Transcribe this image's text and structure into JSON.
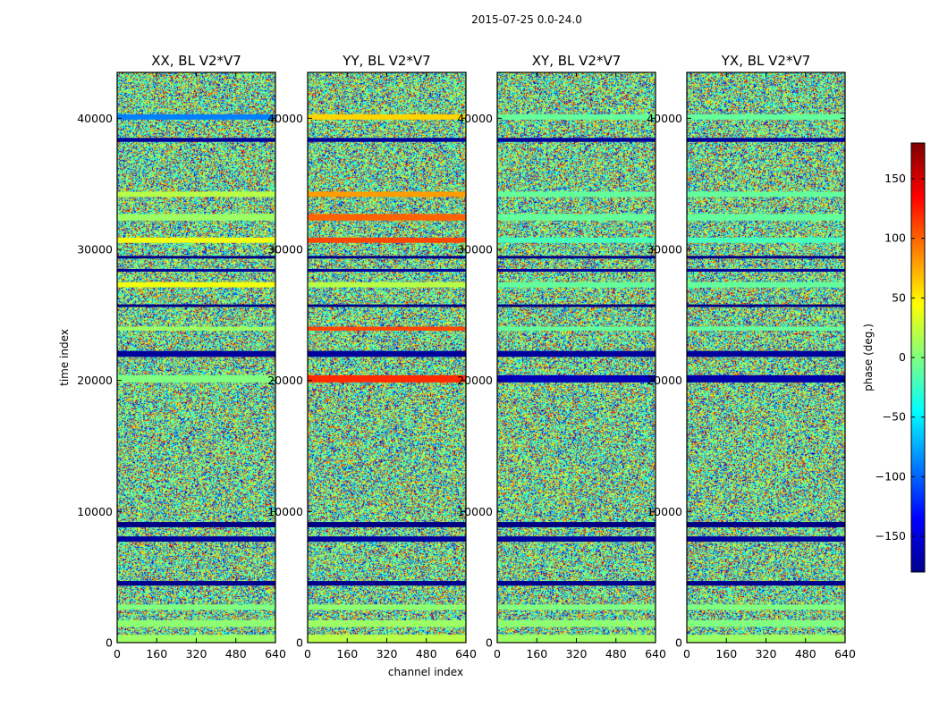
{
  "chart_data": {
    "type": "heatmap",
    "title": "2015-07-25 0.0-24.0",
    "xlabel": "channel index",
    "ylabel": "time index",
    "xlim": [
      0,
      640
    ],
    "ylim": [
      0,
      43500
    ],
    "x_ticks": [
      0,
      160,
      320,
      480,
      640
    ],
    "y_ticks": [
      0,
      10000,
      20000,
      30000,
      40000
    ],
    "panels": [
      {
        "title": "XX, BL V2*V7",
        "polarization": "XX",
        "baseline": "V2*V7"
      },
      {
        "title": "YY, BL V2*V7",
        "polarization": "YY",
        "baseline": "V2*V7"
      },
      {
        "title": "XY, BL V2*V7",
        "polarization": "XY",
        "baseline": "V2*V7"
      },
      {
        "title": "YX, BL V2*V7",
        "polarization": "YX",
        "baseline": "V2*V7"
      }
    ],
    "colorbar": {
      "label": "phase (deg.)",
      "range": [
        -180,
        180
      ],
      "ticks": [
        150,
        100,
        50,
        0,
        -50,
        -100,
        -150
      ],
      "tick_labels": [
        "150",
        "100",
        "50",
        "0",
        "−50",
        "−100",
        "−150"
      ],
      "colormap": "jet"
    },
    "description_of_values": "phase vs channel (x) and time (y); mostly random noise with horizontal coherent bands",
    "bands": [
      {
        "t0": 0,
        "t1": 600,
        "phase": [
          10,
          20,
          10,
          10
        ]
      },
      {
        "t0": 1200,
        "t1": 1700,
        "phase": [
          5,
          10,
          5,
          0
        ]
      },
      {
        "t0": 2500,
        "t1": 2900,
        "phase": [
          0,
          5,
          0,
          0
        ]
      },
      {
        "t0": 4350,
        "t1": 4700,
        "phase": [
          -175,
          -175,
          -175,
          -175
        ]
      },
      {
        "t0": 7700,
        "t1": 8100,
        "phase": [
          -170,
          -170,
          -170,
          -170
        ]
      },
      {
        "t0": 8800,
        "t1": 9200,
        "phase": [
          -178,
          -178,
          -178,
          -178
        ]
      },
      {
        "t0": 19850,
        "t1": 20400,
        "phase": [
          0,
          120,
          -160,
          -165
        ]
      },
      {
        "t0": 21800,
        "t1": 22250,
        "phase": [
          -170,
          -170,
          -170,
          -170
        ]
      },
      {
        "t0": 23800,
        "t1": 24100,
        "phase": [
          10,
          110,
          -10,
          -10
        ]
      },
      {
        "t0": 25600,
        "t1": 25800,
        "phase": [
          -178,
          -178,
          -178,
          -178
        ]
      },
      {
        "t0": 27100,
        "t1": 27500,
        "phase": [
          40,
          20,
          -10,
          -10
        ]
      },
      {
        "t0": 28300,
        "t1": 28500,
        "phase": [
          -170,
          -170,
          -170,
          -170
        ]
      },
      {
        "t0": 29300,
        "t1": 29500,
        "phase": [
          -178,
          -178,
          -178,
          -178
        ]
      },
      {
        "t0": 30500,
        "t1": 30900,
        "phase": [
          40,
          110,
          -20,
          -20
        ]
      },
      {
        "t0": 32200,
        "t1": 32700,
        "phase": [
          10,
          100,
          -10,
          -10
        ]
      },
      {
        "t0": 34000,
        "t1": 34400,
        "phase": [
          20,
          80,
          -10,
          -10
        ]
      },
      {
        "t0": 38200,
        "t1": 38500,
        "phase": [
          -170,
          -170,
          -170,
          -170
        ]
      },
      {
        "t0": 39900,
        "t1": 40300,
        "phase": [
          -90,
          60,
          -10,
          -10
        ]
      }
    ]
  }
}
